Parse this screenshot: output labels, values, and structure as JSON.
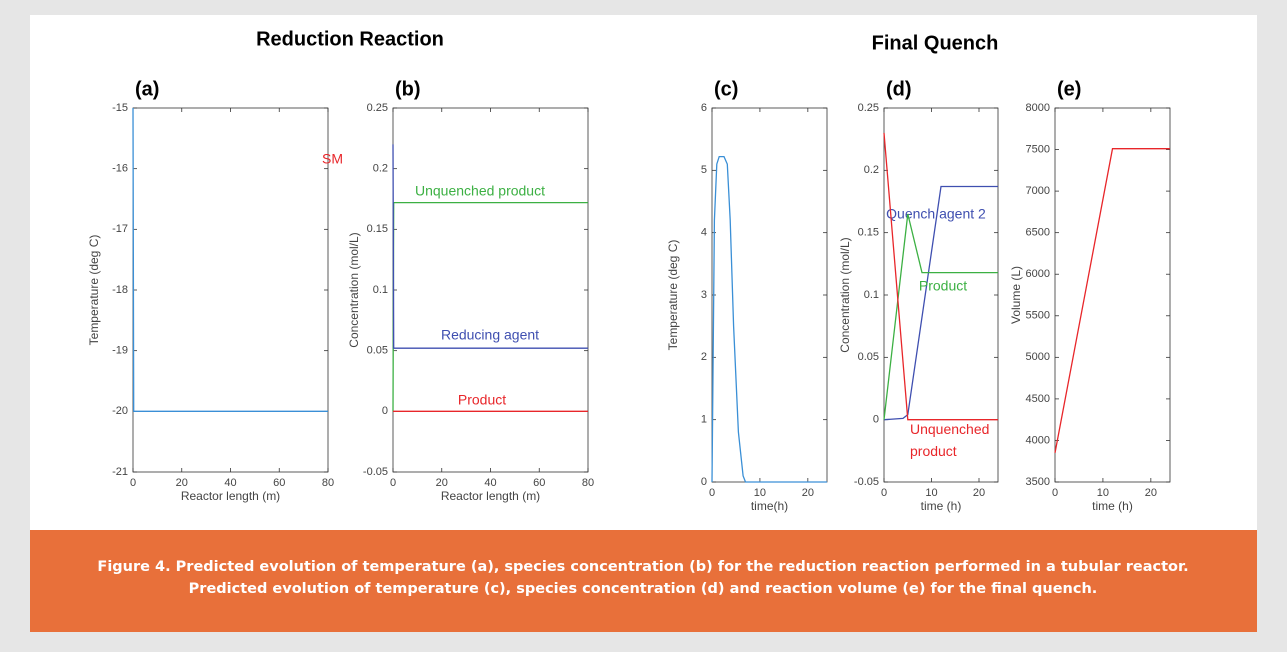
{
  "header": {
    "section_titles": [
      "Reduction Reaction",
      "Final Quench"
    ],
    "caption": [
      "Figure 4. Predicted evolution of temperature (a), species concentration (b) for the reduction reaction performed in a tubular reactor.",
      "Predicted evolution of temperature (c), species concentration (d) and reaction volume (e) for the final quench."
    ]
  },
  "chart_data": [
    {
      "type": "line",
      "panel_label": "(a)",
      "xlabel": "Reactor length (m)",
      "ylabel": "Temperature (deg C)",
      "xlim": [
        0,
        80
      ],
      "xticks": [
        0,
        20,
        40,
        60,
        80
      ],
      "ylim": [
        -21,
        -15
      ],
      "yticks": [
        -21,
        -20,
        -19,
        -18,
        -17,
        -16,
        -15
      ],
      "grid": false,
      "series": [
        {
          "color": "#3a8fd6",
          "x": [
            0,
            0.3,
            80
          ],
          "values": [
            -15,
            -20,
            -20
          ]
        }
      ],
      "annotations": [
        {
          "text": "SM",
          "color": "#e8262a"
        }
      ]
    },
    {
      "type": "line",
      "panel_label": "(b)",
      "xlabel": "Reactor length (m)",
      "ylabel": "Concentration (mol/L)",
      "xlim": [
        0,
        80
      ],
      "xticks": [
        0,
        20,
        40,
        60,
        80
      ],
      "ylim": [
        -0.05,
        0.25
      ],
      "yticks": [
        -0.05,
        0,
        0.05,
        0.1,
        0.15,
        0.2,
        0.25
      ],
      "grid": false,
      "series": [
        {
          "name": "Unquenched product",
          "color": "#3cb043",
          "x": [
            0,
            0.3,
            80
          ],
          "values": [
            0,
            0.172,
            0.172
          ]
        },
        {
          "name": "Reducing agent",
          "color": "#3f4fb0",
          "x": [
            0,
            0.3,
            80
          ],
          "values": [
            0.22,
            0.052,
            0.052
          ]
        },
        {
          "name": "Product",
          "color": "#e8262a",
          "x": [
            0,
            80
          ],
          "values": [
            0,
            0
          ]
        }
      ]
    },
    {
      "type": "line",
      "panel_label": "(c)",
      "xlabel": "time(h)",
      "ylabel": "Temperature (deg C)",
      "xlim": [
        0,
        24
      ],
      "xticks": [
        0,
        10,
        20
      ],
      "ylim": [
        0,
        6
      ],
      "yticks": [
        0,
        1,
        2,
        3,
        4,
        5,
        6
      ],
      "grid": false,
      "series": [
        {
          "color": "#3a8fd6",
          "x": [
            0,
            0.5,
            1,
            1.5,
            2.5,
            3.2,
            3.8,
            4.5,
            5.5,
            6.5,
            7,
            24
          ],
          "values": [
            0,
            4.2,
            5.1,
            5.22,
            5.22,
            5.1,
            4.2,
            2.5,
            0.8,
            0.1,
            0,
            0
          ]
        }
      ]
    },
    {
      "type": "line",
      "panel_label": "(d)",
      "xlabel": "time (h)",
      "ylabel": "Concentration (mol/L)",
      "xlim": [
        0,
        24
      ],
      "xticks": [
        0,
        10,
        20
      ],
      "ylim": [
        -0.05,
        0.25
      ],
      "yticks": [
        -0.05,
        0,
        0.05,
        0.1,
        0.15,
        0.2,
        0.25
      ],
      "grid": false,
      "series": [
        {
          "name": "Quench agent 2",
          "color": "#3f4fb0",
          "x": [
            0,
            4,
            5,
            12,
            24
          ],
          "values": [
            0,
            0.001,
            0.004,
            0.187,
            0.187
          ]
        },
        {
          "name": "Product",
          "color": "#3cb043",
          "x": [
            0,
            5,
            8,
            24
          ],
          "values": [
            0,
            0.165,
            0.118,
            0.118
          ]
        },
        {
          "name": "Unquenched product",
          "color": "#e8262a",
          "x": [
            0,
            5,
            24
          ],
          "values": [
            0.23,
            0,
            0
          ]
        }
      ]
    },
    {
      "type": "line",
      "panel_label": "(e)",
      "xlabel": "time (h)",
      "ylabel": "Volume (L)",
      "xlim": [
        0,
        24
      ],
      "xticks": [
        0,
        10,
        20
      ],
      "ylim": [
        3500,
        8000
      ],
      "yticks": [
        3500,
        4000,
        4500,
        5000,
        5500,
        6000,
        6500,
        7000,
        7500,
        8000
      ],
      "grid": false,
      "series": [
        {
          "color": "#e8262a",
          "x": [
            0,
            12,
            24
          ],
          "values": [
            3850,
            7510,
            7510
          ]
        }
      ]
    }
  ]
}
